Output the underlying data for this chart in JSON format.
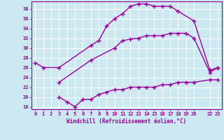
{
  "line1_x": [
    0,
    1,
    3,
    7,
    8,
    9,
    10,
    11,
    12,
    13,
    14,
    15,
    16,
    17,
    18,
    20,
    22,
    23
  ],
  "line1_y": [
    27,
    26,
    26,
    30.5,
    31.5,
    34.5,
    36,
    37,
    38.5,
    39,
    39,
    38.5,
    38.5,
    38.5,
    37.5,
    35.5,
    25.5,
    26
  ],
  "line2_x": [
    3,
    7,
    10,
    11,
    12,
    13,
    14,
    15,
    16,
    17,
    18,
    19,
    20,
    22,
    23
  ],
  "line2_y": [
    23,
    27.5,
    30,
    31.5,
    31.8,
    32,
    32.5,
    32.5,
    32.5,
    33,
    33,
    33,
    32,
    25,
    26
  ],
  "line3_x": [
    3,
    4,
    5,
    6,
    7,
    8,
    9,
    10,
    11,
    12,
    13,
    14,
    15,
    16,
    17,
    18,
    19,
    20,
    22,
    23
  ],
  "line3_y": [
    20,
    19,
    18,
    19.5,
    19.5,
    20.5,
    21,
    21.5,
    21.5,
    22,
    22,
    22,
    22,
    22.5,
    22.5,
    23,
    23,
    23,
    23.5,
    23.5
  ],
  "line_color": "#990099",
  "bg_color": "#cce8f0",
  "grid_color": "#ffffff",
  "xlabel": "Windchill (Refroidissement éolien,°C)",
  "xlim": [
    -0.5,
    23.5
  ],
  "ylim": [
    17.5,
    39.5
  ],
  "xticks": [
    0,
    1,
    2,
    3,
    4,
    5,
    6,
    7,
    8,
    9,
    10,
    11,
    12,
    13,
    14,
    15,
    16,
    17,
    18,
    19,
    20,
    22,
    23
  ],
  "xtick_labels": [
    "0",
    "1",
    "2",
    "3",
    "4",
    "5",
    "6",
    "7",
    "8",
    "9",
    "10",
    "11",
    "12",
    "13",
    "14",
    "15",
    "16",
    "17",
    "18",
    "19",
    "20",
    "22",
    "23"
  ],
  "yticks": [
    18,
    20,
    22,
    24,
    26,
    28,
    30,
    32,
    34,
    36,
    38
  ],
  "ytick_labels": [
    "18",
    "20",
    "22",
    "24",
    "26",
    "28",
    "30",
    "32",
    "34",
    "36",
    "38"
  ],
  "marker": "+",
  "markersize": 4,
  "linewidth": 1.0
}
